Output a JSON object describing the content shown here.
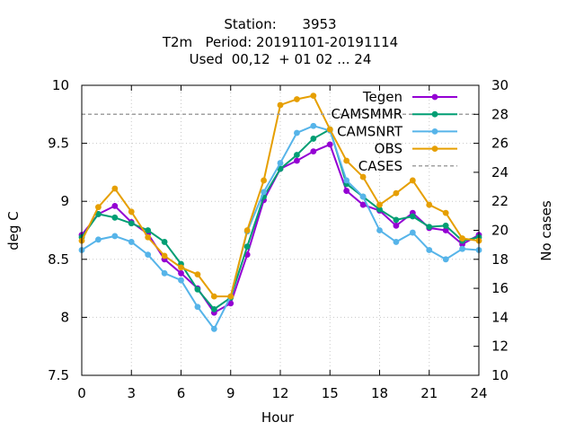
{
  "chart_data": {
    "type": "line",
    "title": [
      "Station:      3953",
      "T2m   Period: 20191101-20191114",
      "Used  00,12  + 01 02 ... 24"
    ],
    "xlabel": "Hour",
    "ylabel": "deg C",
    "y2label": "No cases",
    "xlim": [
      0,
      24
    ],
    "ylim": [
      7.5,
      10
    ],
    "y2lim": [
      10,
      30
    ],
    "xticks": [
      0,
      3,
      6,
      9,
      12,
      15,
      18,
      21,
      24
    ],
    "xtick_labels": [
      "0",
      "3",
      "6",
      "9",
      "12",
      "15",
      "18",
      "21",
      "24"
    ],
    "yticks": [
      7.5,
      8,
      8.5,
      9,
      9.5,
      10
    ],
    "ytick_labels": [
      "7.5",
      "8",
      "8.5",
      "9",
      "9.5",
      "10"
    ],
    "y2ticks": [
      10,
      12,
      14,
      16,
      18,
      20,
      22,
      24,
      26,
      28,
      30
    ],
    "y2tick_labels": [
      "10",
      "12",
      "14",
      "16",
      "18",
      "20",
      "22",
      "24",
      "26",
      "28",
      "30"
    ],
    "grid": true,
    "legend_position": "top-right",
    "x": [
      0,
      1,
      2,
      3,
      4,
      5,
      6,
      7,
      8,
      9,
      10,
      11,
      12,
      13,
      14,
      15,
      16,
      17,
      18,
      19,
      20,
      21,
      22,
      23,
      24
    ],
    "series": [
      {
        "name": "Tegen",
        "color": "#9400d3",
        "axis": "y",
        "values": [
          8.71,
          8.89,
          8.96,
          8.82,
          8.72,
          8.5,
          8.38,
          8.25,
          8.04,
          8.12,
          8.54,
          9.01,
          9.28,
          9.35,
          9.43,
          9.49,
          9.09,
          8.97,
          8.92,
          8.79,
          8.9,
          8.77,
          8.75,
          8.63,
          8.71
        ]
      },
      {
        "name": "CAMSMMR",
        "color": "#009e73",
        "axis": "y",
        "values": [
          8.69,
          8.89,
          8.86,
          8.81,
          8.75,
          8.65,
          8.46,
          8.24,
          8.07,
          8.17,
          8.61,
          9.04,
          9.28,
          9.4,
          9.54,
          9.62,
          9.15,
          9.04,
          8.93,
          8.84,
          8.87,
          8.78,
          8.79,
          8.66,
          8.69
        ]
      },
      {
        "name": "CAMSNRT",
        "color": "#56b4e9",
        "axis": "y",
        "values": [
          8.58,
          8.67,
          8.7,
          8.65,
          8.54,
          8.38,
          8.32,
          8.09,
          7.9,
          8.18,
          8.74,
          9.08,
          9.33,
          9.59,
          9.65,
          9.61,
          9.18,
          9.04,
          8.75,
          8.65,
          8.73,
          8.58,
          8.5,
          8.59,
          8.58
        ]
      },
      {
        "name": "OBS",
        "color": "#e69f00",
        "axis": "y",
        "values": [
          8.66,
          8.95,
          9.11,
          8.91,
          8.69,
          8.53,
          8.43,
          8.37,
          8.18,
          8.18,
          8.75,
          9.18,
          9.83,
          9.88,
          9.91,
          9.62,
          9.35,
          9.21,
          8.97,
          9.07,
          9.18,
          8.97,
          8.9,
          8.68,
          8.66
        ]
      },
      {
        "name": "CASES",
        "color": "#a0a0a0",
        "axis": "y2",
        "dashed": true,
        "values": [
          28,
          28,
          28,
          28,
          28,
          28,
          28,
          28,
          28,
          28,
          28,
          28,
          28,
          28,
          28,
          28,
          28,
          28,
          28,
          28,
          28,
          28,
          28,
          28,
          28
        ]
      }
    ]
  }
}
